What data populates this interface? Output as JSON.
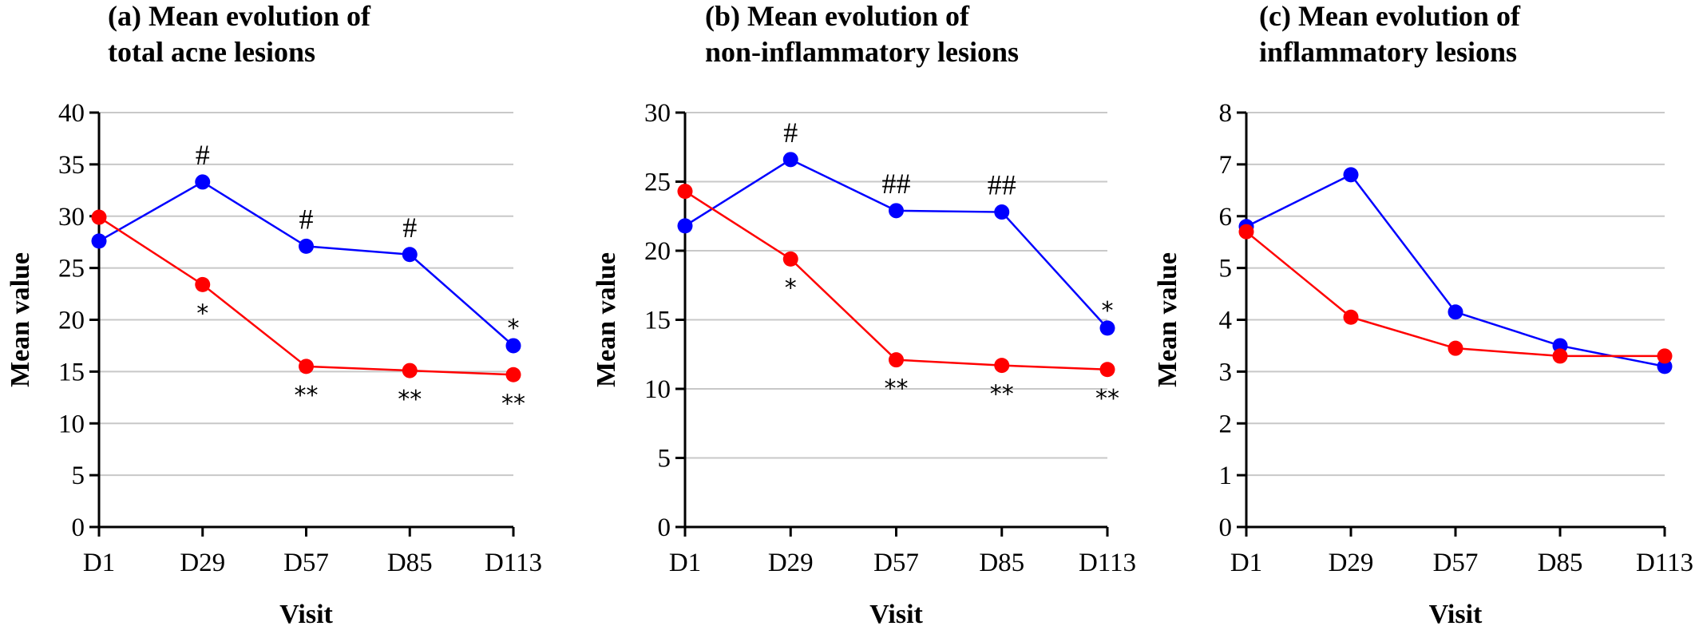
{
  "chart_data": [
    {
      "type": "line",
      "title_lines": [
        "(a) Mean evolution of",
        "total acne lesions"
      ],
      "xlabel": "Visit",
      "ylabel": "Mean value",
      "categories": [
        "D1",
        "D29",
        "D57",
        "D85",
        "D113"
      ],
      "ylim": [
        0,
        40
      ],
      "yticks": [
        0,
        5,
        10,
        15,
        20,
        25,
        30,
        35,
        40
      ],
      "grid": true,
      "series": [
        {
          "color": "#0000ff",
          "values": [
            27.6,
            33.3,
            27.1,
            26.3,
            17.5
          ]
        },
        {
          "color": "#ff0000",
          "values": [
            29.9,
            23.4,
            15.5,
            15.1,
            14.7
          ]
        }
      ],
      "annotations": [
        {
          "text": "#",
          "category": "D29",
          "series": 0,
          "position": "above"
        },
        {
          "text": "#",
          "category": "D57",
          "series": 0,
          "position": "above"
        },
        {
          "text": "#",
          "category": "D85",
          "series": 0,
          "position": "above"
        },
        {
          "text": "*",
          "category": "D113",
          "series": 0,
          "position": "above"
        },
        {
          "text": "*",
          "category": "D29",
          "series": 1,
          "position": "below"
        },
        {
          "text": "**",
          "category": "D57",
          "series": 1,
          "position": "below"
        },
        {
          "text": "**",
          "category": "D85",
          "series": 1,
          "position": "below"
        },
        {
          "text": "**",
          "category": "D113",
          "series": 1,
          "position": "below"
        }
      ]
    },
    {
      "type": "line",
      "title_lines": [
        "(b) Mean evolution of",
        "non-inflammatory lesions"
      ],
      "xlabel": "Visit",
      "ylabel": "Mean value",
      "categories": [
        "D1",
        "D29",
        "D57",
        "D85",
        "D113"
      ],
      "ylim": [
        0,
        30
      ],
      "yticks": [
        0,
        5,
        10,
        15,
        20,
        25,
        30
      ],
      "grid": true,
      "series": [
        {
          "color": "#0000ff",
          "values": [
            21.8,
            26.6,
            22.9,
            22.8,
            14.4
          ]
        },
        {
          "color": "#ff0000",
          "values": [
            24.3,
            19.4,
            12.1,
            11.7,
            11.4
          ]
        }
      ],
      "annotations": [
        {
          "text": "#",
          "category": "D29",
          "series": 0,
          "position": "above"
        },
        {
          "text": "##",
          "category": "D57",
          "series": 0,
          "position": "above"
        },
        {
          "text": "##",
          "category": "D85",
          "series": 0,
          "position": "above"
        },
        {
          "text": "*",
          "category": "D113",
          "series": 0,
          "position": "above"
        },
        {
          "text": "*",
          "category": "D29",
          "series": 1,
          "position": "below"
        },
        {
          "text": "**",
          "category": "D57",
          "series": 1,
          "position": "below"
        },
        {
          "text": "**",
          "category": "D85",
          "series": 1,
          "position": "below"
        },
        {
          "text": "**",
          "category": "D113",
          "series": 1,
          "position": "below"
        }
      ]
    },
    {
      "type": "line",
      "title_lines": [
        "(c) Mean evolution of",
        "inflammatory lesions"
      ],
      "xlabel": "Visit",
      "ylabel": "Mean value",
      "categories": [
        "D1",
        "D29",
        "D57",
        "D85",
        "D113"
      ],
      "ylim": [
        0,
        8
      ],
      "yticks": [
        0,
        1,
        2,
        3,
        4,
        5,
        6,
        7,
        8
      ],
      "grid": true,
      "series": [
        {
          "color": "#0000ff",
          "values": [
            5.8,
            6.8,
            4.15,
            3.5,
            3.1
          ]
        },
        {
          "color": "#ff0000",
          "values": [
            5.7,
            4.05,
            3.45,
            3.3,
            3.3
          ]
        }
      ],
      "annotations": []
    }
  ]
}
